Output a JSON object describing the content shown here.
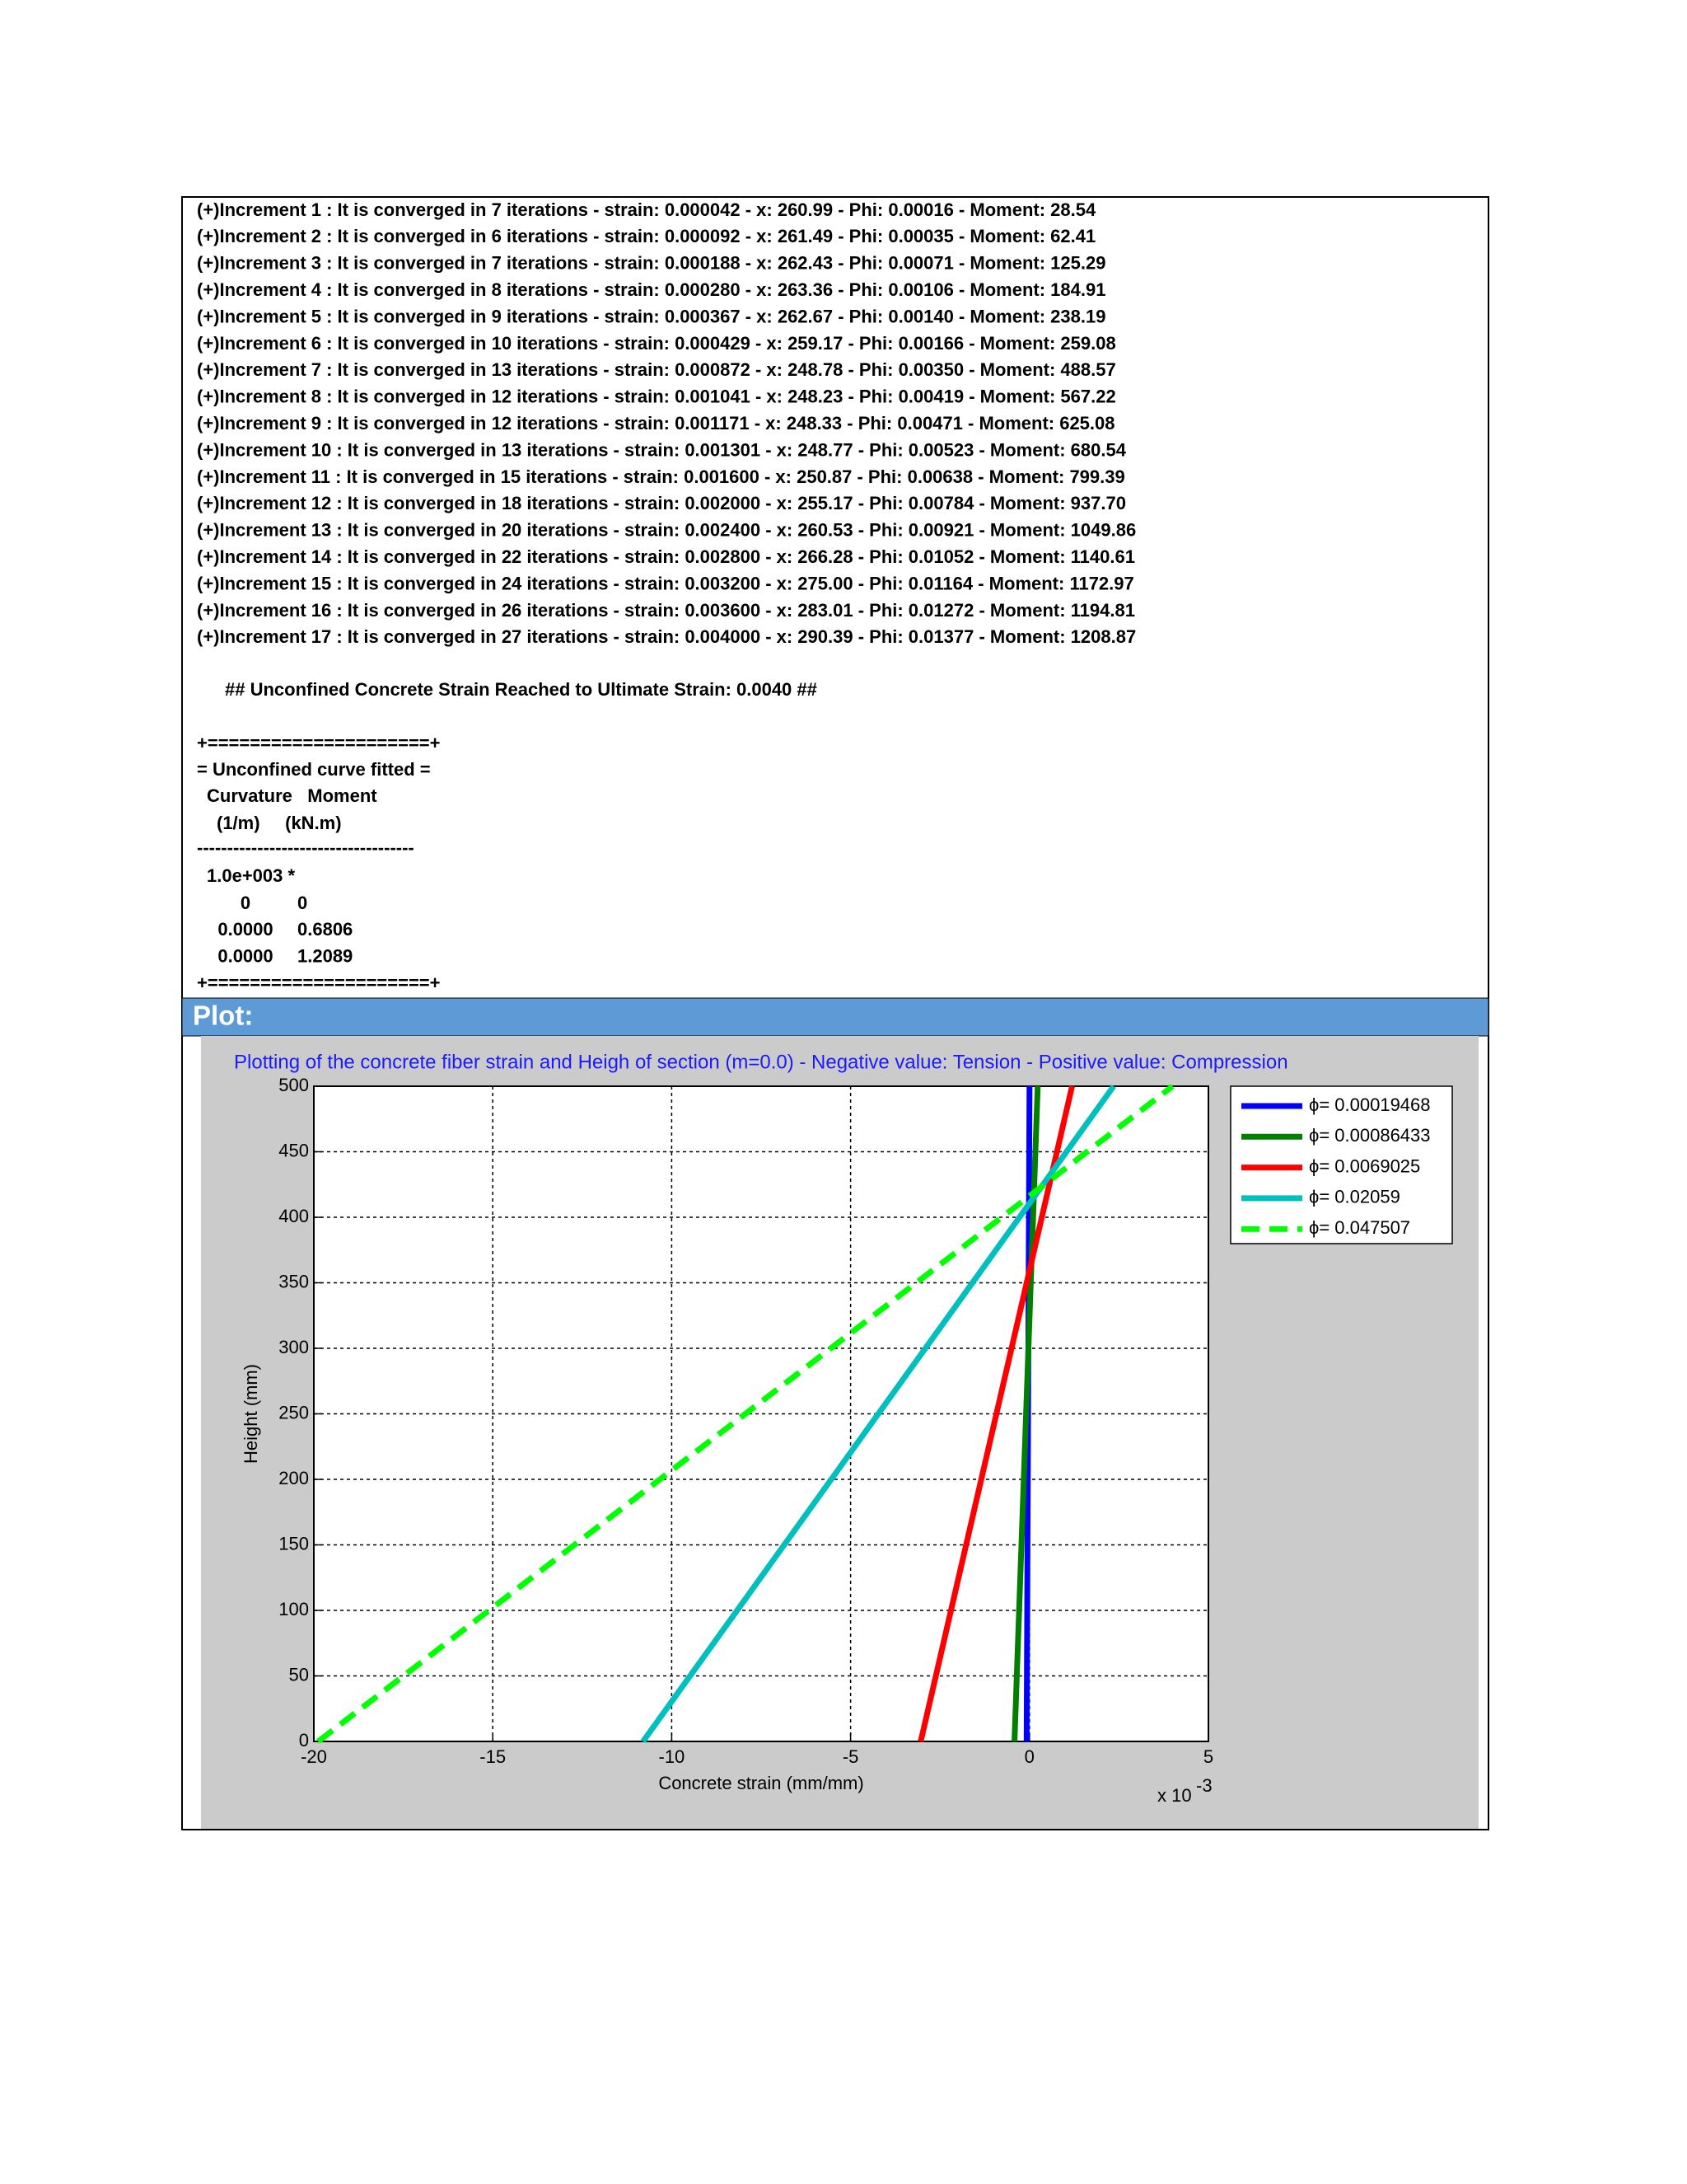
{
  "log": [
    "(+)Increment 1 : It is converged in 7 iterations - strain: 0.000042 - x: 260.99 - Phi: 0.00016 - Moment: 28.54",
    "(+)Increment 2 : It is converged in 6 iterations - strain: 0.000092 - x: 261.49 - Phi: 0.00035 - Moment: 62.41",
    "(+)Increment 3 : It is converged in 7 iterations - strain: 0.000188 - x: 262.43 - Phi: 0.00071 - Moment: 125.29",
    "(+)Increment 4 : It is converged in 8 iterations - strain: 0.000280 - x: 263.36 - Phi: 0.00106 - Moment: 184.91",
    "(+)Increment 5 : It is converged in 9 iterations - strain: 0.000367 - x: 262.67 - Phi: 0.00140 - Moment: 238.19",
    "(+)Increment 6 : It is converged in 10 iterations - strain: 0.000429 - x: 259.17 - Phi: 0.00166 - Moment: 259.08",
    "(+)Increment 7 : It is converged in 13 iterations - strain: 0.000872 - x: 248.78 - Phi: 0.00350 - Moment: 488.57",
    "(+)Increment 8 : It is converged in 12 iterations - strain: 0.001041 - x: 248.23 - Phi: 0.00419 - Moment: 567.22",
    "(+)Increment 9 : It is converged in 12 iterations - strain: 0.001171 - x: 248.33 - Phi: 0.00471 - Moment: 625.08",
    "(+)Increment 10 : It is converged in 13 iterations - strain: 0.001301 - x: 248.77 - Phi: 0.00523 - Moment: 680.54",
    "(+)Increment 11 : It is converged in 15 iterations - strain: 0.001600 - x: 250.87 - Phi: 0.00638 - Moment: 799.39",
    "(+)Increment 12 : It is converged in 18 iterations - strain: 0.002000 - x: 255.17 - Phi: 0.00784 - Moment: 937.70",
    "(+)Increment 13 : It is converged in 20 iterations - strain: 0.002400 - x: 260.53 - Phi: 0.00921 - Moment: 1049.86",
    "(+)Increment 14 : It is converged in 22 iterations - strain: 0.002800 - x: 266.28 - Phi: 0.01052 - Moment: 1140.61",
    "(+)Increment 15 : It is converged in 24 iterations - strain: 0.003200 - x: 275.00 - Phi: 0.01164 - Moment: 1172.97",
    "(+)Increment 16 : It is converged in 26 iterations - strain: 0.003600 - x: 283.01 - Phi: 0.01272 - Moment: 1194.81",
    "(+)Increment 17 : It is converged in 27 iterations - strain: 0.004000 - x: 290.39 - Phi: 0.01377 - Moment: 1208.87"
  ],
  "note": "## Unconfined Concrete Strain Reached to Ultimate Strain: 0.0040 ##",
  "table": {
    "border": "+=====================+",
    "title": "= Unconfined curve fitted =",
    "header": "Curvature   Moment",
    "units": "(1/m)     (kN.m)",
    "rule": "------------------------------------",
    "scale": "1.0e+003 *",
    "rows": [
      [
        "0",
        "0"
      ],
      [
        "0.0000",
        "0.6806"
      ],
      [
        "0.0000",
        "1.2089"
      ]
    ]
  },
  "plot_header": "Plot:",
  "chart_data": {
    "type": "line",
    "title": "Plotting of the concrete fiber strain and Heigh of section (m=0.0) - Negative value: Tension - Positive value: Compression",
    "x_label": "Concrete strain (mm/mm)",
    "y_label": "Height (mm)",
    "x_multiplier": {
      "base": "x 10",
      "exponent": "-3"
    },
    "xlim": [
      -20,
      5
    ],
    "xticks": [
      -20,
      -15,
      -10,
      -5,
      0,
      5
    ],
    "ylim": [
      0,
      500
    ],
    "yticks": [
      0,
      50,
      100,
      150,
      200,
      250,
      300,
      350,
      400,
      450,
      500
    ],
    "grid": true,
    "legend": "outside-right",
    "series": [
      {
        "name": "ϕ= 0.00019468",
        "color": "#0000ff",
        "dashed": false,
        "x": [
          -0.08,
          0.0
        ],
        "y": [
          0,
          500
        ]
      },
      {
        "name": "ϕ= 0.00086433",
        "color": "#007f00",
        "dashed": false,
        "x": [
          -0.42,
          0.23
        ],
        "y": [
          0,
          500
        ]
      },
      {
        "name": "ϕ= 0.0069025",
        "color": "#ff0000",
        "dashed": false,
        "x": [
          -3.04,
          1.19
        ],
        "y": [
          0,
          500
        ]
      },
      {
        "name": "ϕ= 0.02059",
        "color": "#00bfbf",
        "dashed": false,
        "x": [
          -10.8,
          2.35
        ],
        "y": [
          0,
          500
        ]
      },
      {
        "name": "ϕ= 0.047507",
        "color": "#00ff00",
        "dashed": true,
        "x": [
          -19.88,
          4.0
        ],
        "y": [
          0,
          500
        ]
      }
    ]
  }
}
